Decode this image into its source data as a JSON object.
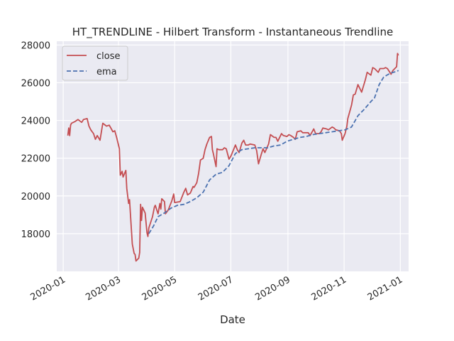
{
  "chart_data": {
    "type": "line",
    "title": "HT_TRENDLINE - Hilbert Transform - Instantaneous Trendline",
    "xlabel": "Date",
    "ylabel": "",
    "xlim": [
      "2019-12-25",
      "2021-01-10"
    ],
    "ylim": [
      16000,
      28200
    ],
    "x_ticks": [
      "2020-01",
      "2020-03",
      "2020-05",
      "2020-07",
      "2020-09",
      "2020-11",
      "2021-01"
    ],
    "y_ticks": [
      18000,
      20000,
      22000,
      24000,
      26000,
      28000
    ],
    "grid": true,
    "legend_position": "top-left",
    "background_color": "#eaeaf2",
    "series": [
      {
        "name": "close",
        "color": "#c44e52",
        "style": "solid",
        "points": [
          [
            "2020-01-06",
            23200
          ],
          [
            "2020-01-07",
            23600
          ],
          [
            "2020-01-08",
            23200
          ],
          [
            "2020-01-09",
            23750
          ],
          [
            "2020-01-10",
            23850
          ],
          [
            "2020-01-14",
            23950
          ],
          [
            "2020-01-17",
            24050
          ],
          [
            "2020-01-21",
            23900
          ],
          [
            "2020-01-23",
            24050
          ],
          [
            "2020-01-27",
            24100
          ],
          [
            "2020-01-29",
            23700
          ],
          [
            "2020-01-31",
            23500
          ],
          [
            "2020-02-03",
            23300
          ],
          [
            "2020-02-05",
            23000
          ],
          [
            "2020-02-07",
            23200
          ],
          [
            "2020-02-10",
            22950
          ],
          [
            "2020-02-13",
            23850
          ],
          [
            "2020-02-17",
            23700
          ],
          [
            "2020-02-20",
            23750
          ],
          [
            "2020-02-24",
            23400
          ],
          [
            "2020-02-26",
            23450
          ],
          [
            "2020-02-28",
            23100
          ],
          [
            "2020-03-02",
            22500
          ],
          [
            "2020-03-03",
            21100
          ],
          [
            "2020-03-05",
            21300
          ],
          [
            "2020-03-06",
            21000
          ],
          [
            "2020-03-09",
            21350
          ],
          [
            "2020-03-10",
            20400
          ],
          [
            "2020-03-11",
            20000
          ],
          [
            "2020-03-12",
            19600
          ],
          [
            "2020-03-13",
            19800
          ],
          [
            "2020-03-16",
            17450
          ],
          [
            "2020-03-17",
            17200
          ],
          [
            "2020-03-18",
            16950
          ],
          [
            "2020-03-19",
            16900
          ],
          [
            "2020-03-20",
            16550
          ],
          [
            "2020-03-23",
            16700
          ],
          [
            "2020-03-24",
            17000
          ],
          [
            "2020-03-25",
            19550
          ],
          [
            "2020-03-26",
            18700
          ],
          [
            "2020-03-27",
            19400
          ],
          [
            "2020-03-30",
            19100
          ],
          [
            "2020-04-01",
            18050
          ],
          [
            "2020-04-02",
            17850
          ],
          [
            "2020-04-03",
            18300
          ],
          [
            "2020-04-07",
            18900
          ],
          [
            "2020-04-09",
            19400
          ],
          [
            "2020-04-10",
            19500
          ],
          [
            "2020-04-13",
            19050
          ],
          [
            "2020-04-15",
            19600
          ],
          [
            "2020-04-16",
            19300
          ],
          [
            "2020-04-17",
            19850
          ],
          [
            "2020-04-20",
            19700
          ],
          [
            "2020-04-21",
            19050
          ],
          [
            "2020-04-24",
            19250
          ],
          [
            "2020-04-28",
            19750
          ],
          [
            "2020-04-30",
            20100
          ],
          [
            "2020-05-01",
            19650
          ],
          [
            "2020-05-07",
            19700
          ],
          [
            "2020-05-11",
            20200
          ],
          [
            "2020-05-13",
            20400
          ],
          [
            "2020-05-15",
            20050
          ],
          [
            "2020-05-18",
            20150
          ],
          [
            "2020-05-21",
            20500
          ],
          [
            "2020-05-22",
            20450
          ],
          [
            "2020-05-25",
            20700
          ],
          [
            "2020-05-27",
            21200
          ],
          [
            "2020-05-29",
            21900
          ],
          [
            "2020-06-01",
            22000
          ],
          [
            "2020-06-03",
            22450
          ],
          [
            "2020-06-05",
            22750
          ],
          [
            "2020-06-08",
            23100
          ],
          [
            "2020-06-10",
            23150
          ],
          [
            "2020-06-11",
            22450
          ],
          [
            "2020-06-12",
            22250
          ],
          [
            "2020-06-15",
            21550
          ],
          [
            "2020-06-16",
            22500
          ],
          [
            "2020-06-18",
            22450
          ],
          [
            "2020-06-22",
            22450
          ],
          [
            "2020-06-24",
            22550
          ],
          [
            "2020-06-26",
            22500
          ],
          [
            "2020-06-29",
            21950
          ],
          [
            "2020-07-01",
            22100
          ],
          [
            "2020-07-06",
            22700
          ],
          [
            "2020-07-08",
            22450
          ],
          [
            "2020-07-10",
            22300
          ],
          [
            "2020-07-13",
            22800
          ],
          [
            "2020-07-15",
            22950
          ],
          [
            "2020-07-17",
            22700
          ],
          [
            "2020-07-20",
            22700
          ],
          [
            "2020-07-22",
            22750
          ],
          [
            "2020-07-27",
            22700
          ],
          [
            "2020-07-29",
            22400
          ],
          [
            "2020-07-31",
            21700
          ],
          [
            "2020-08-03",
            22200
          ],
          [
            "2020-08-05",
            22500
          ],
          [
            "2020-08-07",
            22300
          ],
          [
            "2020-08-11",
            22750
          ],
          [
            "2020-08-13",
            23250
          ],
          [
            "2020-08-17",
            23100
          ],
          [
            "2020-08-19",
            23100
          ],
          [
            "2020-08-21",
            22900
          ],
          [
            "2020-08-25",
            23300
          ],
          [
            "2020-08-27",
            23200
          ],
          [
            "2020-08-31",
            23150
          ],
          [
            "2020-09-02",
            23250
          ],
          [
            "2020-09-04",
            23200
          ],
          [
            "2020-09-07",
            23100
          ],
          [
            "2020-09-09",
            23000
          ],
          [
            "2020-09-11",
            23400
          ],
          [
            "2020-09-15",
            23450
          ],
          [
            "2020-09-17",
            23350
          ],
          [
            "2020-09-23",
            23350
          ],
          [
            "2020-09-25",
            23200
          ],
          [
            "2020-09-29",
            23550
          ],
          [
            "2020-10-01",
            23300
          ],
          [
            "2020-10-05",
            23300
          ],
          [
            "2020-10-07",
            23400
          ],
          [
            "2020-10-09",
            23600
          ],
          [
            "2020-10-13",
            23550
          ],
          [
            "2020-10-15",
            23500
          ],
          [
            "2020-10-19",
            23650
          ],
          [
            "2020-10-21",
            23600
          ],
          [
            "2020-10-23",
            23500
          ],
          [
            "2020-10-27",
            23450
          ],
          [
            "2020-10-29",
            23300
          ],
          [
            "2020-10-30",
            22950
          ],
          [
            "2020-11-02",
            23300
          ],
          [
            "2020-11-04",
            23700
          ],
          [
            "2020-11-05",
            24100
          ],
          [
            "2020-11-09",
            24800
          ],
          [
            "2020-11-11",
            25350
          ],
          [
            "2020-11-13",
            25400
          ],
          [
            "2020-11-16",
            25900
          ],
          [
            "2020-11-18",
            25700
          ],
          [
            "2020-11-20",
            25500
          ],
          [
            "2020-11-24",
            26150
          ],
          [
            "2020-11-26",
            26550
          ],
          [
            "2020-11-30",
            26400
          ],
          [
            "2020-12-02",
            26800
          ],
          [
            "2020-12-04",
            26750
          ],
          [
            "2020-12-08",
            26550
          ],
          [
            "2020-12-10",
            26750
          ],
          [
            "2020-12-14",
            26750
          ],
          [
            "2020-12-16",
            26800
          ],
          [
            "2020-12-18",
            26750
          ],
          [
            "2020-12-22",
            26450
          ],
          [
            "2020-12-24",
            26650
          ],
          [
            "2020-12-28",
            26850
          ],
          [
            "2020-12-29",
            27550
          ],
          [
            "2020-12-30",
            27450
          ]
        ]
      },
      {
        "name": "ema",
        "color": "#4c72b0",
        "style": "dashed",
        "points": [
          [
            "2020-04-03",
            18000
          ],
          [
            "2020-04-08",
            18400
          ],
          [
            "2020-04-13",
            18900
          ],
          [
            "2020-04-20",
            19100
          ],
          [
            "2020-04-27",
            19350
          ],
          [
            "2020-05-04",
            19500
          ],
          [
            "2020-05-11",
            19550
          ],
          [
            "2020-05-18",
            19700
          ],
          [
            "2020-05-25",
            19900
          ],
          [
            "2020-06-01",
            20200
          ],
          [
            "2020-06-08",
            20850
          ],
          [
            "2020-06-15",
            21150
          ],
          [
            "2020-06-22",
            21250
          ],
          [
            "2020-06-29",
            21600
          ],
          [
            "2020-07-06",
            22250
          ],
          [
            "2020-07-13",
            22450
          ],
          [
            "2020-07-20",
            22500
          ],
          [
            "2020-07-27",
            22550
          ],
          [
            "2020-08-03",
            22550
          ],
          [
            "2020-08-10",
            22550
          ],
          [
            "2020-08-17",
            22650
          ],
          [
            "2020-08-24",
            22700
          ],
          [
            "2020-08-31",
            22900
          ],
          [
            "2020-09-07",
            23000
          ],
          [
            "2020-09-14",
            23100
          ],
          [
            "2020-09-21",
            23150
          ],
          [
            "2020-09-28",
            23250
          ],
          [
            "2020-10-05",
            23300
          ],
          [
            "2020-10-12",
            23350
          ],
          [
            "2020-10-19",
            23400
          ],
          [
            "2020-10-26",
            23450
          ],
          [
            "2020-11-02",
            23500
          ],
          [
            "2020-11-09",
            23650
          ],
          [
            "2020-11-16",
            24250
          ],
          [
            "2020-11-23",
            24600
          ],
          [
            "2020-11-30",
            25000
          ],
          [
            "2020-12-04",
            25200
          ],
          [
            "2020-12-09",
            25900
          ],
          [
            "2020-12-14",
            26300
          ],
          [
            "2020-12-21",
            26500
          ],
          [
            "2020-12-28",
            26600
          ],
          [
            "2020-12-30",
            26650
          ]
        ]
      }
    ]
  }
}
